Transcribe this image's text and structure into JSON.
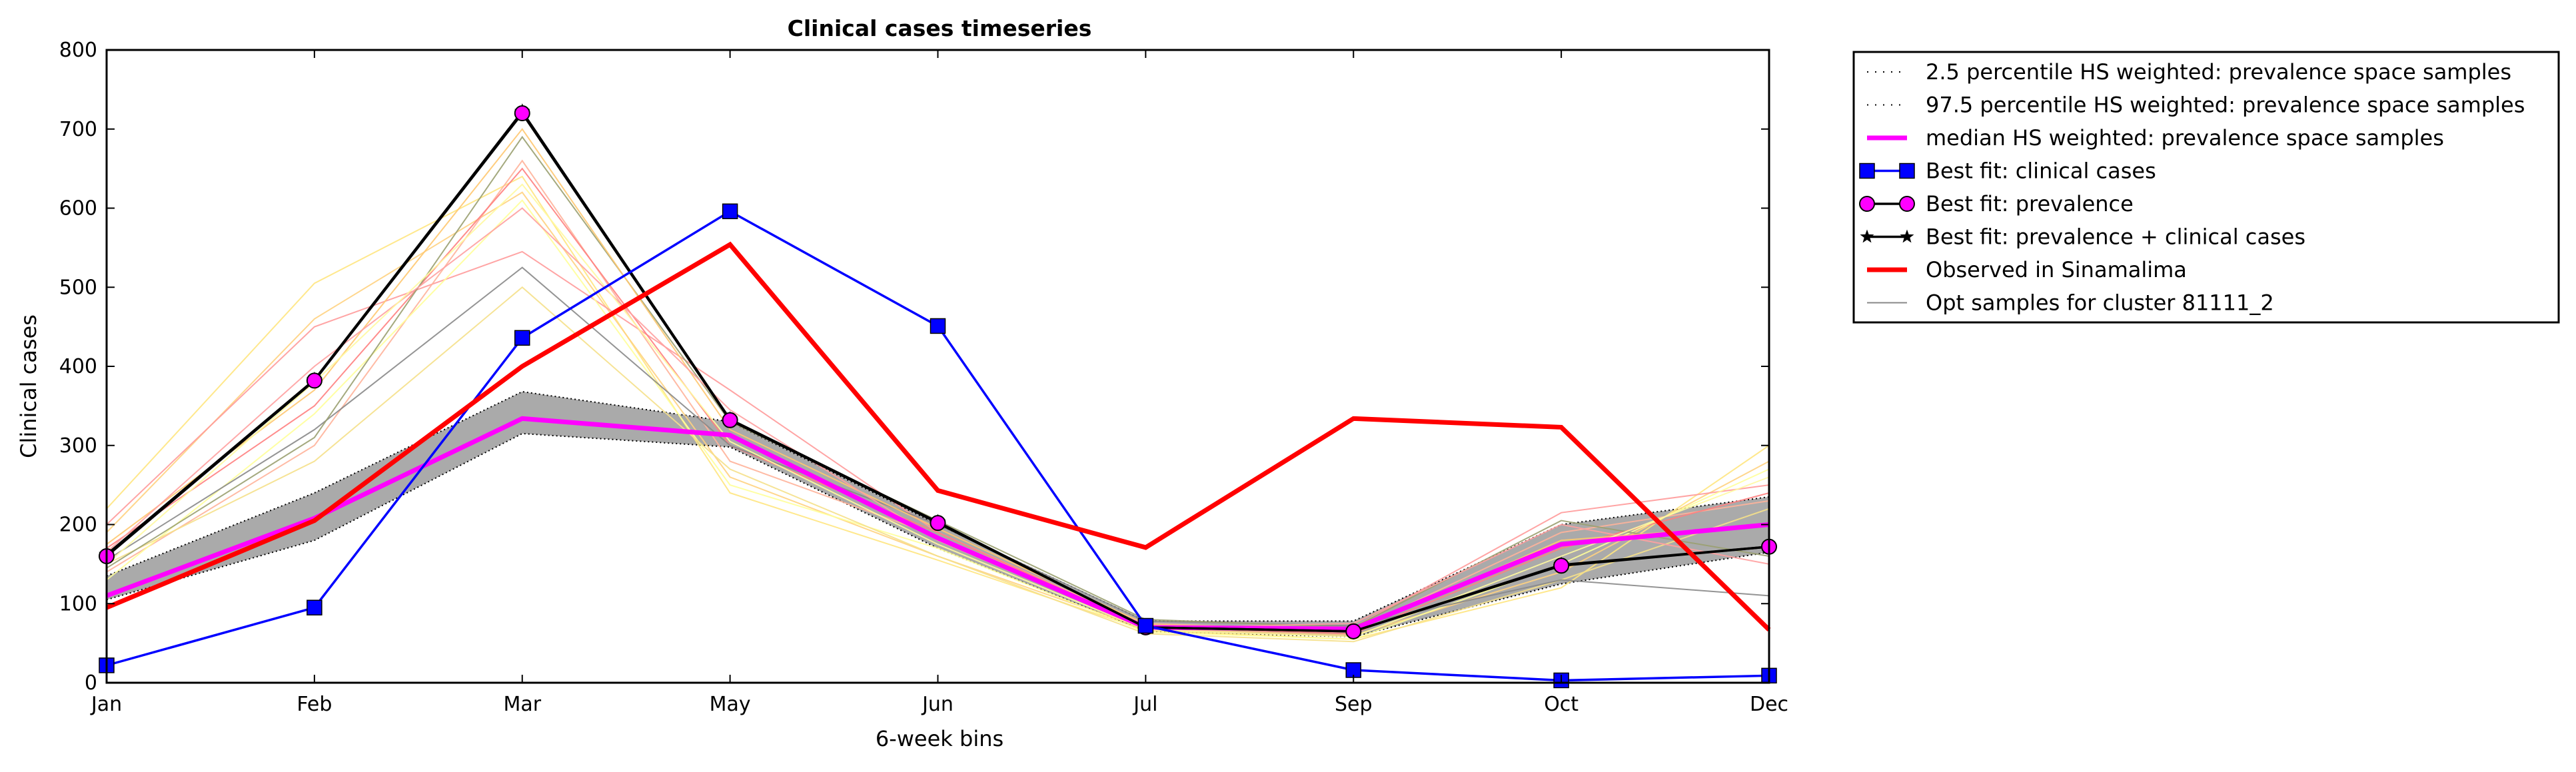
{
  "chart_data": {
    "type": "line",
    "title": "Clinical cases timeseries",
    "xlabel": "6-week bins",
    "ylabel": "Clinical cases",
    "categories": [
      "Jan",
      "Feb",
      "Mar",
      "May",
      "Jun",
      "Jul",
      "Sep",
      "Oct",
      "Dec"
    ],
    "ylim": [
      0,
      800
    ],
    "yticks": [
      0,
      100,
      200,
      300,
      400,
      500,
      600,
      700,
      800
    ],
    "grid": false,
    "legend_position": "outside-right",
    "band": {
      "fill": "#aaaaaa",
      "low_name": "2.5 percentile HS weighted: prevalence space samples",
      "high_name": "97.5 percentile HS weighted: prevalence space samples",
      "low": [
        105,
        180,
        315,
        298,
        170,
        65,
        58,
        125,
        165
      ],
      "high": [
        135,
        240,
        368,
        330,
        200,
        78,
        78,
        200,
        235
      ],
      "color": "#000000",
      "style": "dotted"
    },
    "median": {
      "name": "median HS weighted: prevalence space samples",
      "color": "#ff00ff",
      "values": [
        110,
        208,
        334,
        313,
        183,
        70,
        68,
        175,
        200
      ]
    },
    "series": [
      {
        "name": "Best fit: clinical cases",
        "color": "#0000ff",
        "marker": "square",
        "values": [
          22,
          95,
          436,
          596,
          451,
          72,
          16,
          3,
          9
        ]
      },
      {
        "name": "Best fit: prevalence",
        "color": "#000000",
        "marker": "circle",
        "marker_fill": "#ff00ff",
        "values": [
          160,
          382,
          720,
          332,
          202,
          70,
          65,
          148,
          172
        ]
      },
      {
        "name": "Best fit: prevalence + clinical cases",
        "color": "#000000",
        "marker": "star",
        "values": [
          162,
          383,
          722,
          333,
          203,
          70,
          65,
          149,
          172
        ]
      },
      {
        "name": "Observed in Sinamalima",
        "color": "#ff0000",
        "marker": "none",
        "values": [
          95,
          205,
          400,
          554,
          243,
          171,
          334,
          323,
          67
        ]
      }
    ],
    "samples": {
      "name": "Opt samples for cluster 81111_2",
      "legend_color": "#888888",
      "lines": [
        {
          "color": "#ffe680",
          "values": [
            220,
            505,
            640,
            240,
            155,
            66,
            55,
            120,
            300
          ]
        },
        {
          "color": "#ffd27f",
          "values": [
            190,
            460,
            620,
            260,
            160,
            68,
            60,
            140,
            280
          ]
        },
        {
          "color": "#ff9a9a",
          "values": [
            200,
            450,
            545,
            370,
            190,
            72,
            70,
            215,
            250
          ]
        },
        {
          "color": "#ffb39a",
          "values": [
            140,
            300,
            660,
            280,
            185,
            75,
            66,
            190,
            230
          ]
        },
        {
          "color": "#ff8080",
          "values": [
            170,
            350,
            650,
            300,
            190,
            70,
            62,
            170,
            240
          ]
        },
        {
          "color": "#ffff99",
          "values": [
            130,
            340,
            610,
            250,
            170,
            64,
            55,
            150,
            270
          ]
        },
        {
          "color": "#f5e08a",
          "values": [
            150,
            280,
            500,
            270,
            160,
            62,
            52,
            130,
            220
          ]
        },
        {
          "color": "#888888",
          "values": [
            155,
            320,
            525,
            300,
            200,
            78,
            72,
            130,
            110
          ]
        },
        {
          "color": "#9aa070",
          "values": [
            145,
            310,
            690,
            330,
            205,
            80,
            70,
            205,
            160
          ]
        },
        {
          "color": "#ffc870",
          "values": [
            175,
            370,
            700,
            320,
            195,
            74,
            65,
            180,
            200
          ]
        },
        {
          "color": "#ffa0a0",
          "values": [
            165,
            400,
            600,
            345,
            180,
            69,
            75,
            200,
            150
          ]
        },
        {
          "color": "#fffaa0",
          "values": [
            150,
            380,
            630,
            305,
            175,
            67,
            58,
            160,
            260
          ]
        }
      ]
    }
  }
}
